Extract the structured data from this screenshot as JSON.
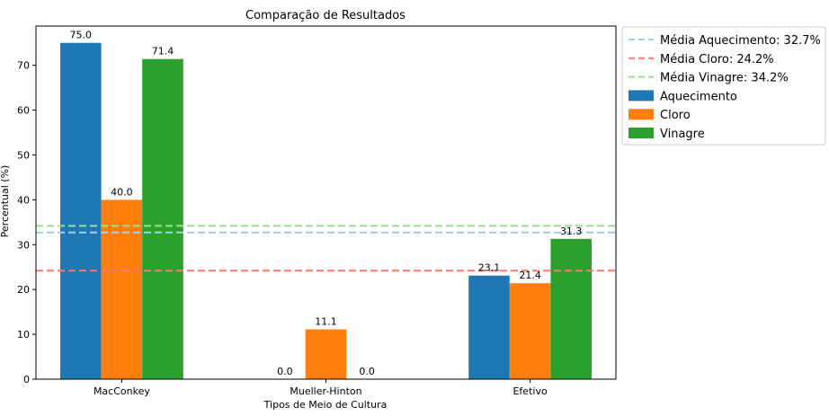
{
  "chart_data": {
    "type": "bar",
    "title": "Comparação de Resultados",
    "xlabel": "Tipos de Meio de Cultura",
    "ylabel": "Percentual (%)",
    "categories": [
      "MacConkey",
      "Mueller-Hinton",
      "Efetivo"
    ],
    "ylim": [
      0,
      78.75
    ],
    "yticks": [
      0,
      10,
      20,
      30,
      40,
      50,
      60,
      70
    ],
    "grid": false,
    "legend_position": "outside-top-right",
    "series": [
      {
        "name": "Aquecimento",
        "color": "#1f77b4",
        "values": [
          75.0,
          0.0,
          23.1
        ],
        "value_labels": [
          "75.0",
          "0.0",
          "23.1"
        ]
      },
      {
        "name": "Cloro",
        "color": "#ff7f0e",
        "values": [
          40.0,
          11.1,
          21.4
        ],
        "value_labels": [
          "40.0",
          "11.1",
          "21.4"
        ]
      },
      {
        "name": "Vinagre",
        "color": "#2ca02c",
        "values": [
          71.4,
          0.0,
          31.3
        ],
        "value_labels": [
          "71.4",
          "0.0",
          "31.3"
        ]
      }
    ],
    "reference_lines": [
      {
        "label": "Média Aquecimento: 32.7%",
        "value": 32.7,
        "color": "#a6cee3"
      },
      {
        "label": "Média Cloro: 24.2%",
        "value": 24.2,
        "color": "#f47a7a"
      },
      {
        "label": "Média Vinagre: 34.2%",
        "value": 34.2,
        "color": "#98df8a"
      }
    ]
  }
}
